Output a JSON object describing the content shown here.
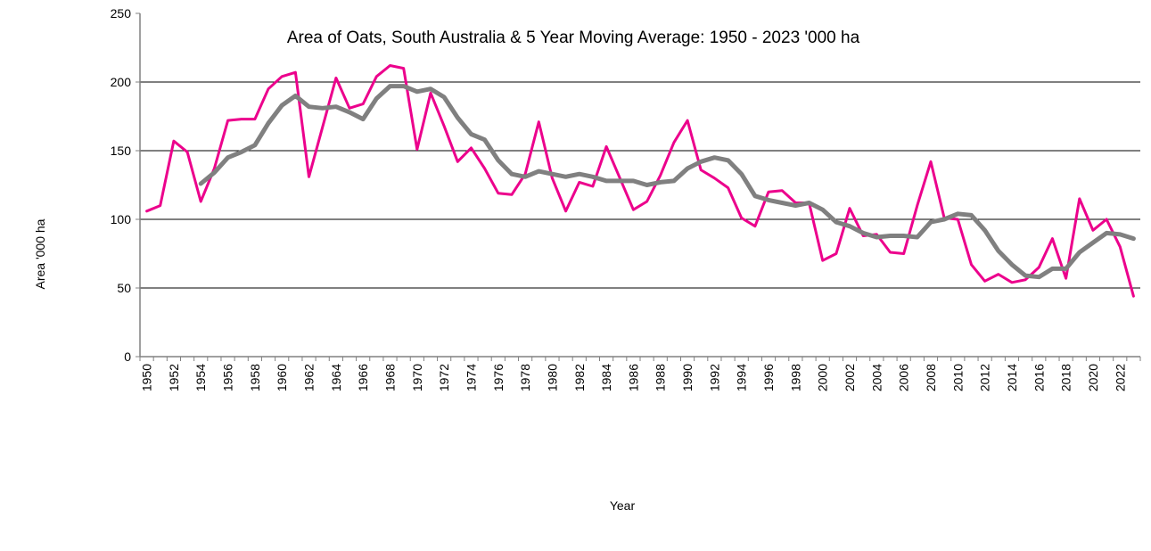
{
  "chart_data": {
    "type": "line",
    "title": "Area of Oats,  South Australia & 5 Year Moving Average: 1950 - 2023 '000 ha",
    "xlabel": "Year",
    "ylabel": "Area '000 ha",
    "ylim": [
      0,
      250
    ],
    "yticks": [
      0,
      50,
      100,
      150,
      200,
      250
    ],
    "ytick_labels": [
      "0",
      "50",
      "100",
      "150",
      "200",
      "250"
    ],
    "grid": "horizontal",
    "legend": "none",
    "x": [
      1950,
      1951,
      1952,
      1953,
      1954,
      1955,
      1956,
      1957,
      1958,
      1959,
      1960,
      1961,
      1962,
      1963,
      1964,
      1965,
      1966,
      1967,
      1968,
      1969,
      1970,
      1971,
      1972,
      1973,
      1974,
      1975,
      1976,
      1977,
      1978,
      1979,
      1980,
      1981,
      1982,
      1983,
      1984,
      1985,
      1986,
      1987,
      1988,
      1989,
      1990,
      1991,
      1992,
      1993,
      1994,
      1995,
      1996,
      1997,
      1998,
      1999,
      2000,
      2001,
      2002,
      2003,
      2004,
      2005,
      2006,
      2007,
      2008,
      2009,
      2010,
      2011,
      2012,
      2013,
      2014,
      2015,
      2016,
      2017,
      2018,
      2019,
      2020,
      2021,
      2022,
      2023
    ],
    "xtick_labels": [
      "1950",
      "1952",
      "1954",
      "1956",
      "1958",
      "1960",
      "1962",
      "1964",
      "1966",
      "1968",
      "1970",
      "1972",
      "1974",
      "1976",
      "1978",
      "1980",
      "1982",
      "1984",
      "1986",
      "1988",
      "1990",
      "1992",
      "1994",
      "1996",
      "1998",
      "2000",
      "2002",
      "2004",
      "2006",
      "2008",
      "2010",
      "2012",
      "2014",
      "2016",
      "2018",
      "2020",
      "2022"
    ],
    "series": [
      {
        "name": "Area of Oats",
        "color": "#EC008C",
        "values": [
          106,
          110,
          157,
          149,
          113,
          137,
          172,
          173,
          173,
          195,
          204,
          207,
          131,
          167,
          203,
          181,
          184,
          204,
          212,
          210,
          151,
          192,
          168,
          142,
          152,
          137,
          119,
          118,
          133,
          171,
          130,
          106,
          127,
          124,
          153,
          130,
          107,
          113,
          132,
          156,
          172,
          136,
          130,
          123,
          101,
          95,
          120,
          121,
          112,
          112,
          70,
          75,
          108,
          88,
          89,
          76,
          75,
          110,
          142,
          101,
          100,
          67,
          55,
          60,
          54,
          56,
          65,
          86,
          57,
          115,
          92,
          100,
          80,
          44
        ]
      },
      {
        "name": "5 Year Moving Average",
        "color": "#808080",
        "values": [
          null,
          null,
          null,
          null,
          126,
          134,
          145,
          149,
          154,
          170,
          183,
          190,
          182,
          181,
          182,
          178,
          173,
          188,
          197,
          197,
          193,
          195,
          189,
          174,
          162,
          158,
          143,
          133,
          131,
          135,
          133,
          131,
          133,
          131,
          128,
          128,
          128,
          125,
          127,
          128,
          137,
          142,
          145,
          143,
          133,
          117,
          114,
          112,
          110,
          112,
          107,
          98,
          95,
          90,
          87,
          88,
          88,
          87,
          98,
          100,
          104,
          103,
          92,
          77,
          67,
          59,
          58,
          64,
          64,
          76,
          83,
          90,
          89,
          86
        ]
      }
    ]
  }
}
